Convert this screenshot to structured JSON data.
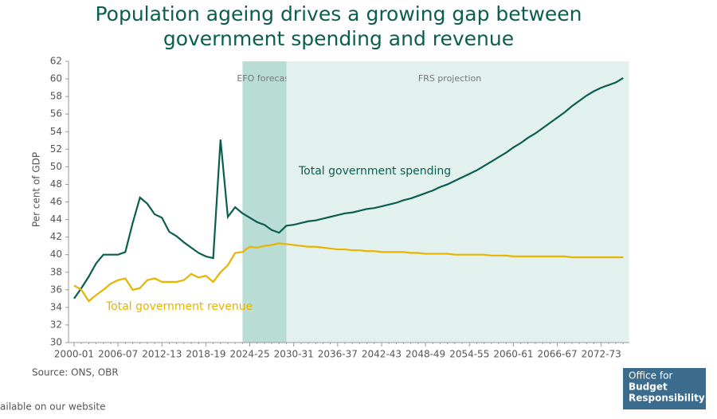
{
  "chart_data": {
    "type": "line",
    "title": [
      "Population ageing drives a growing gap between",
      "government spending and revenue"
    ],
    "y_label": "Per cent of GDP",
    "source": "Source: ONS, OBR",
    "footer_note": "ailable on our website",
    "logo": [
      "Office for",
      "Budget",
      "Responsibility"
    ],
    "categories": [
      "2000-01",
      null,
      null,
      null,
      null,
      null,
      "2006-07",
      null,
      null,
      null,
      null,
      null,
      "2012-13",
      null,
      null,
      null,
      null,
      null,
      "2018-19",
      null,
      null,
      null,
      null,
      null,
      "2024-25",
      null,
      null,
      null,
      null,
      null,
      "2030-31",
      null,
      null,
      null,
      null,
      null,
      "2036-37",
      null,
      null,
      null,
      null,
      null,
      "2042-43",
      null,
      null,
      null,
      null,
      null,
      "2048-49",
      null,
      null,
      null,
      null,
      null,
      "2054-55",
      null,
      null,
      null,
      null,
      null,
      "2060-61",
      null,
      null,
      null,
      null,
      null,
      "2066-67",
      null,
      null,
      null,
      null,
      null,
      "2072-73",
      null,
      null,
      null
    ],
    "shaded_regions": [
      {
        "label": "EFO forecast",
        "from": 23,
        "to": 29,
        "color": "#b9dcd5"
      },
      {
        "label": "FRS projection",
        "from": 29,
        "to": 75.8,
        "color": "#e3f1ee"
      }
    ],
    "series": [
      {
        "name": "Total government spending",
        "color": "#0b5e4f",
        "values": [
          35.0,
          36.2,
          37.5,
          39.0,
          40.0,
          40.0,
          40.0,
          40.3,
          43.6,
          46.5,
          45.8,
          44.6,
          44.2,
          42.6,
          42.1,
          41.4,
          40.8,
          40.2,
          39.8,
          39.6,
          53.1,
          44.3,
          45.4,
          44.7,
          44.2,
          43.7,
          43.4,
          42.8,
          42.5,
          43.3,
          43.4,
          43.6,
          43.8,
          43.9,
          44.1,
          44.3,
          44.5,
          44.7,
          44.8,
          45.0,
          45.2,
          45.3,
          45.5,
          45.7,
          45.9,
          46.2,
          46.4,
          46.7,
          47.0,
          47.3,
          47.7,
          48.0,
          48.4,
          48.8,
          49.2,
          49.6,
          50.1,
          50.6,
          51.1,
          51.6,
          52.2,
          52.7,
          53.3,
          53.8,
          54.4,
          55.0,
          55.6,
          56.2,
          56.9,
          57.5,
          58.1,
          58.6,
          59.0,
          59.3,
          59.6,
          60.1
        ]
      },
      {
        "name": "Total government revenue",
        "color": "#e8b400",
        "values": [
          36.5,
          36.0,
          34.7,
          35.4,
          36.0,
          36.7,
          37.1,
          37.3,
          36.0,
          36.2,
          37.1,
          37.3,
          36.9,
          36.9,
          36.9,
          37.1,
          37.8,
          37.4,
          37.6,
          36.9,
          38.0,
          38.8,
          40.2,
          40.3,
          40.9,
          40.8,
          41.0,
          41.1,
          41.3,
          41.2,
          41.1,
          41.0,
          40.9,
          40.9,
          40.8,
          40.7,
          40.6,
          40.6,
          40.5,
          40.5,
          40.4,
          40.4,
          40.3,
          40.3,
          40.3,
          40.3,
          40.2,
          40.2,
          40.1,
          40.1,
          40.1,
          40.1,
          40.0,
          40.0,
          40.0,
          40.0,
          40.0,
          39.9,
          39.9,
          39.9,
          39.8,
          39.8,
          39.8,
          39.8,
          39.8,
          39.8,
          39.8,
          39.8,
          39.7,
          39.7,
          39.7,
          39.7,
          39.7,
          39.7,
          39.7,
          39.7
        ]
      }
    ],
    "ylim": [
      30,
      62
    ],
    "yticks": [
      30,
      32,
      34,
      36,
      38,
      40,
      42,
      44,
      46,
      48,
      50,
      52,
      54,
      56,
      58,
      60,
      62
    ]
  }
}
